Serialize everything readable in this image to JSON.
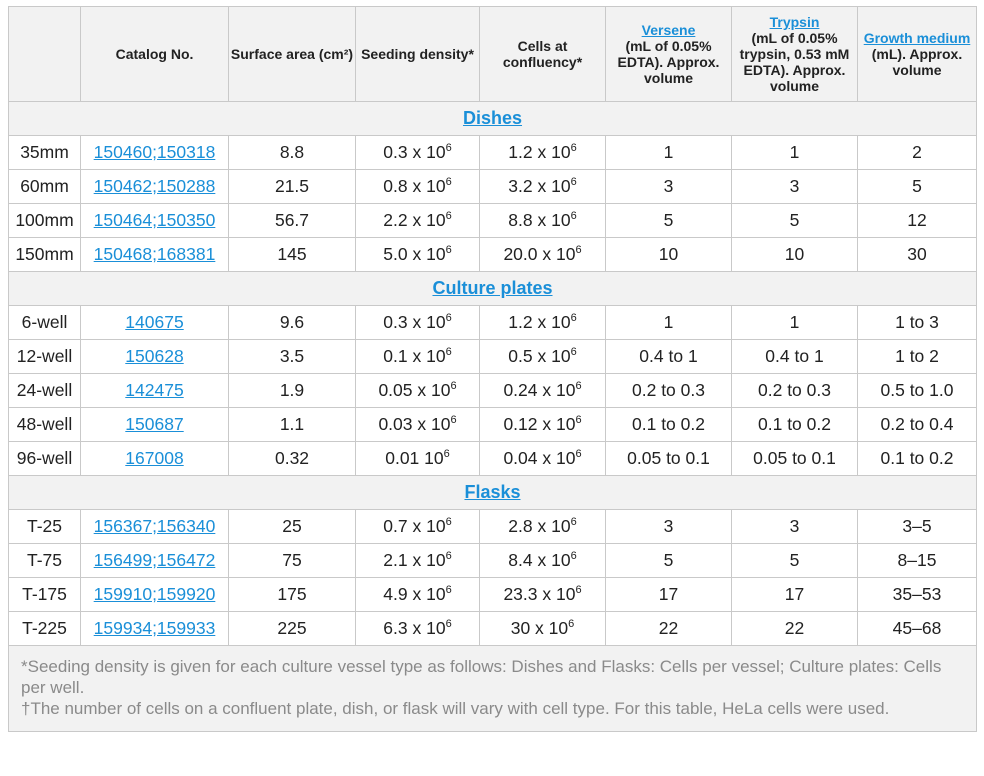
{
  "headers": {
    "c0": "",
    "catalog": "Catalog No.",
    "surface_area": "Surface area (cm²)",
    "seeding": "Seeding density*",
    "confluency": "Cells at confluency*",
    "versene_link": "Versene",
    "versene_rest": "(mL of 0.05% EDTA). Approx. volume",
    "trypsin_link": "Trypsin",
    "trypsin_rest": "(mL of 0.05% trypsin, 0.53 mM EDTA). Approx. volume",
    "medium_link": "Growth medium",
    "medium_rest": "(mL). Approx. volume"
  },
  "sections": {
    "dishes": "Dishes",
    "plates": "Culture plates",
    "flasks": "Flasks"
  },
  "rows": [
    {
      "type": "35mm",
      "catalog": "150460;150318",
      "area": "8.8",
      "seed": "0.3 x 10",
      "seed_exp": "6",
      "conf": "1.2 x 10",
      "conf_exp": "6",
      "versene": "1",
      "trypsin": "1",
      "medium": "2"
    },
    {
      "type": "60mm",
      "catalog": "150462;150288",
      "area": "21.5",
      "seed": "0.8 x 10",
      "seed_exp": "6",
      "conf": "3.2 x 10",
      "conf_exp": "6",
      "versene": "3",
      "trypsin": "3",
      "medium": "5"
    },
    {
      "type": "100mm",
      "catalog": "150464;150350",
      "area": "56.7",
      "seed": "2.2 x 10",
      "seed_exp": "6",
      "conf": "8.8 x 10",
      "conf_exp": "6",
      "versene": "5",
      "trypsin": "5",
      "medium": "12"
    },
    {
      "type": "150mm",
      "catalog": "150468;168381",
      "area": "145",
      "seed": "5.0 x 10",
      "seed_exp": "6",
      "conf": "20.0 x 10",
      "conf_exp": "6",
      "versene": "10",
      "trypsin": "10",
      "medium": "30"
    },
    {
      "type": "6-well",
      "catalog": "140675",
      "area": "9.6",
      "seed": "0.3 x 10",
      "seed_exp": "6",
      "conf": "1.2 x 10",
      "conf_exp": "6",
      "versene": "1",
      "trypsin": "1",
      "medium": "1 to 3"
    },
    {
      "type": "12-well",
      "catalog": "150628",
      "area": "3.5",
      "seed": "0.1 x 10",
      "seed_exp": "6",
      "conf": "0.5 x 10",
      "conf_exp": "6",
      "versene": "0.4 to 1",
      "trypsin": "0.4 to 1",
      "medium": "1 to 2"
    },
    {
      "type": "24-well",
      "catalog": "142475",
      "area": "1.9",
      "seed": "0.05 x 10",
      "seed_exp": "6",
      "conf": "0.24 x 10",
      "conf_exp": "6",
      "versene": "0.2 to 0.3",
      "trypsin": "0.2 to 0.3",
      "medium": "0.5 to 1.0"
    },
    {
      "type": "48-well",
      "catalog": "150687",
      "area": "1.1",
      "seed": "0.03 x 10",
      "seed_exp": "6",
      "conf": "0.12 x 10",
      "conf_exp": "6",
      "versene": "0.1 to 0.2",
      "trypsin": "0.1 to 0.2",
      "medium": "0.2 to 0.4"
    },
    {
      "type": "96-well",
      "catalog": "167008",
      "area": "0.32",
      "seed": "0.01 10",
      "seed_exp": "6",
      "conf": "0.04 x 10",
      "conf_exp": "6",
      "versene": "0.05 to 0.1",
      "trypsin": "0.05 to 0.1",
      "medium": "0.1 to 0.2"
    },
    {
      "type": "T-25",
      "catalog": "156367;156340",
      "area": "25",
      "seed": "0.7 x 10",
      "seed_exp": "6",
      "conf": "2.8 x 10",
      "conf_exp": "6",
      "versene": "3",
      "trypsin": "3",
      "medium": "3–5"
    },
    {
      "type": "T-75",
      "catalog": "156499;156472",
      "area": "75",
      "seed": "2.1 x 10",
      "seed_exp": "6",
      "conf": "8.4 x 10",
      "conf_exp": "6",
      "versene": "5",
      "trypsin": "5",
      "medium": "8–15"
    },
    {
      "type": "T-175",
      "catalog": "159910;159920",
      "area": "175",
      "seed": "4.9 x 10",
      "seed_exp": "6",
      "conf": "23.3 x 10",
      "conf_exp": "6",
      "versene": "17",
      "trypsin": "17",
      "medium": "35–53"
    },
    {
      "type": "T-225",
      "catalog": "159934;159933",
      "area": "225",
      "seed": "6.3 x 10",
      "seed_exp": "6",
      "conf": "30 x 10",
      "conf_exp": "6",
      "versene": "22",
      "trypsin": "22",
      "medium": "45–68"
    }
  ],
  "footnotes": {
    "seeding": "*Seeding density is given for each culture vessel type as follows: Dishes and Flasks: Cells per vessel; Culture plates: Cells per well.",
    "confluency": "†The number of cells on a confluent plate, dish, or flask will vary with cell type. For this table, HeLa cells were used."
  }
}
